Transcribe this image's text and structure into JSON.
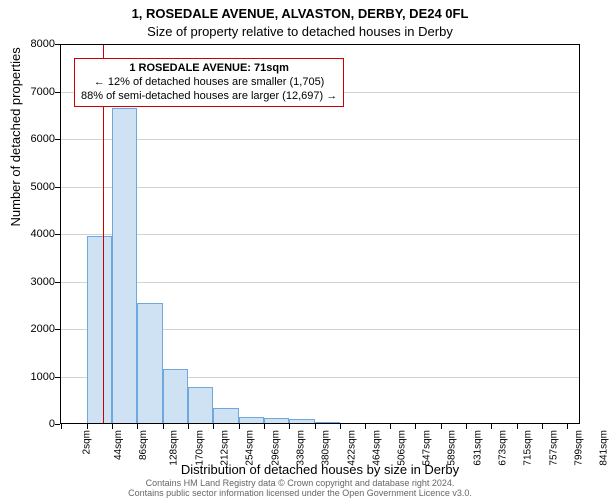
{
  "titles": {
    "main": "1, ROSEDALE AVENUE, ALVASTON, DERBY, DE24 0FL",
    "sub": "Size of property relative to detached houses in Derby"
  },
  "axes": {
    "x_label": "Distribution of detached houses by size in Derby",
    "y_label": "Number of detached properties",
    "y_min": 0,
    "y_max": 8000,
    "y_ticks": [
      0,
      1000,
      2000,
      3000,
      4000,
      5000,
      6000,
      7000,
      8000
    ],
    "x_min": 0,
    "x_max": 862,
    "x_ticks": [
      {
        "v": 2,
        "label": "2sqm"
      },
      {
        "v": 44,
        "label": "44sqm"
      },
      {
        "v": 86,
        "label": "86sqm"
      },
      {
        "v": 128,
        "label": "128sqm"
      },
      {
        "v": 170,
        "label": "170sqm"
      },
      {
        "v": 212,
        "label": "212sqm"
      },
      {
        "v": 254,
        "label": "254sqm"
      },
      {
        "v": 296,
        "label": "296sqm"
      },
      {
        "v": 338,
        "label": "338sqm"
      },
      {
        "v": 380,
        "label": "380sqm"
      },
      {
        "v": 422,
        "label": "422sqm"
      },
      {
        "v": 464,
        "label": "464sqm"
      },
      {
        "v": 506,
        "label": "506sqm"
      },
      {
        "v": 547,
        "label": "547sqm"
      },
      {
        "v": 589,
        "label": "589sqm"
      },
      {
        "v": 631,
        "label": "631sqm"
      },
      {
        "v": 673,
        "label": "673sqm"
      },
      {
        "v": 715,
        "label": "715sqm"
      },
      {
        "v": 757,
        "label": "757sqm"
      },
      {
        "v": 799,
        "label": "799sqm"
      },
      {
        "v": 841,
        "label": "841sqm"
      }
    ]
  },
  "style": {
    "grid_color": "#d3d3d3",
    "bar_fill": "#cfe2f3",
    "bar_stroke": "#6fa8dc",
    "ref_line_color": "#cc0000",
    "callout_border": "#cc0000",
    "attribution_color": "#666666",
    "axis_color": "#000000",
    "label_fontsize": 13,
    "tick_fontsize": 11
  },
  "bars": {
    "bin_width": 42,
    "data": [
      {
        "x_start": 2,
        "count": 0
      },
      {
        "x_start": 44,
        "count": 3950
      },
      {
        "x_start": 86,
        "count": 6650
      },
      {
        "x_start": 128,
        "count": 2550
      },
      {
        "x_start": 170,
        "count": 1150
      },
      {
        "x_start": 212,
        "count": 780
      },
      {
        "x_start": 254,
        "count": 330
      },
      {
        "x_start": 296,
        "count": 150
      },
      {
        "x_start": 338,
        "count": 120
      },
      {
        "x_start": 380,
        "count": 100
      },
      {
        "x_start": 422,
        "count": 40
      },
      {
        "x_start": 464,
        "count": 0
      },
      {
        "x_start": 506,
        "count": 0
      },
      {
        "x_start": 547,
        "count": 0
      },
      {
        "x_start": 589,
        "count": 0
      },
      {
        "x_start": 631,
        "count": 0
      },
      {
        "x_start": 673,
        "count": 0
      },
      {
        "x_start": 715,
        "count": 0
      },
      {
        "x_start": 757,
        "count": 0
      },
      {
        "x_start": 799,
        "count": 0
      }
    ]
  },
  "reference": {
    "value": 71,
    "callout_lines": [
      "1 ROSEDALE AVENUE: 71sqm",
      "← 12% of detached houses are smaller (1,705)",
      "88% of semi-detached houses are larger (12,697) →"
    ]
  },
  "attribution": "Contains HM Land Registry data © Crown copyright and database right 2024.\nContains public sector information licensed under the Open Government Licence v3.0."
}
